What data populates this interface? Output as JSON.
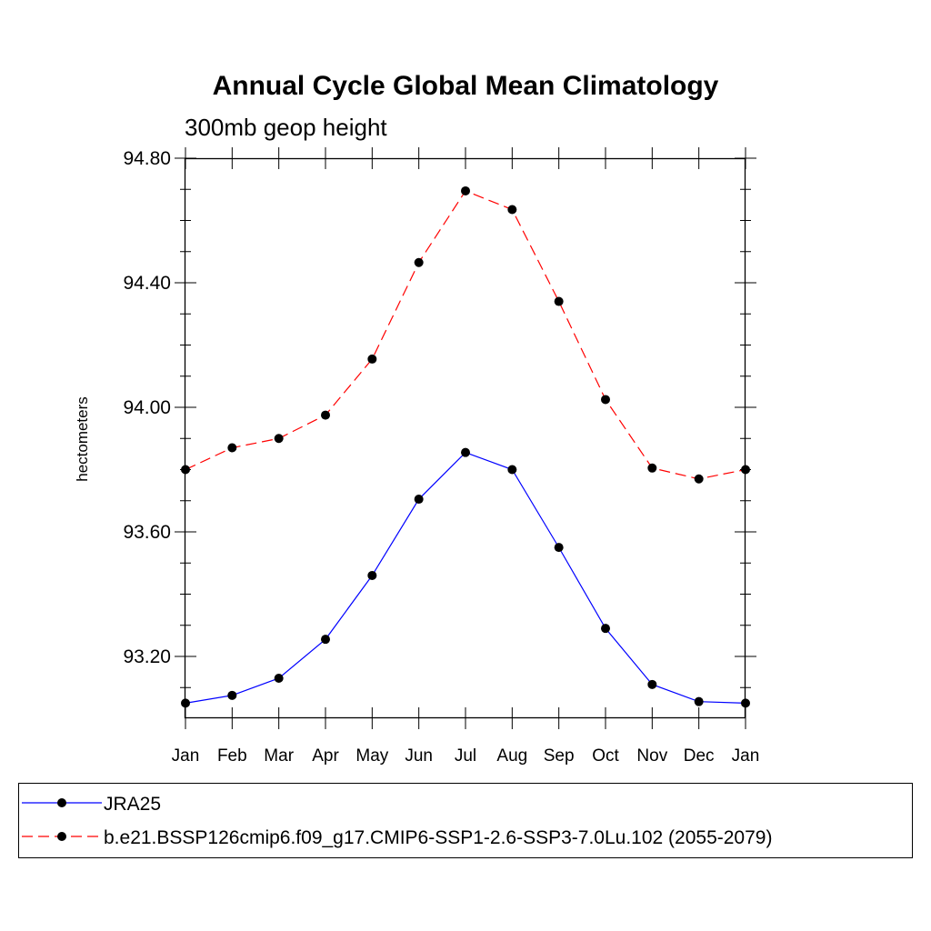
{
  "chart_data": {
    "type": "line",
    "title": "Annual Cycle Global Mean Climatology",
    "subtitle": "300mb geop height",
    "ylabel": "hectometers",
    "xlabel": "",
    "categories": [
      "Jan",
      "Feb",
      "Mar",
      "Apr",
      "May",
      "Jun",
      "Jul",
      "Aug",
      "Sep",
      "Oct",
      "Nov",
      "Dec",
      "Jan"
    ],
    "ylim": [
      93.0,
      94.85
    ],
    "yticks": [
      93.2,
      93.6,
      94.0,
      94.4,
      94.8
    ],
    "ytick_labels": [
      "93.20",
      "93.60",
      "94.00",
      "94.40",
      "94.80"
    ],
    "grid": false,
    "legend_position": "bottom",
    "series": [
      {
        "name": "JRA25",
        "color": "#0000ff",
        "line_style": "solid",
        "marker": "filled-circle",
        "values": [
          93.05,
          93.075,
          93.13,
          93.255,
          93.46,
          93.705,
          93.855,
          93.8,
          93.55,
          93.29,
          93.11,
          93.055,
          93.05
        ]
      },
      {
        "name": "b.e21.BSSP126cmip6.f09_g17.CMIP6-SSP1-2.6-SSP3-7.0Lu.102 (2055-2079)",
        "color": "#ff0000",
        "line_style": "dashed",
        "marker": "filled-circle",
        "values": [
          93.8,
          93.87,
          93.9,
          93.975,
          94.155,
          94.465,
          94.695,
          94.635,
          94.34,
          94.025,
          93.805,
          93.77,
          93.8
        ]
      }
    ]
  }
}
